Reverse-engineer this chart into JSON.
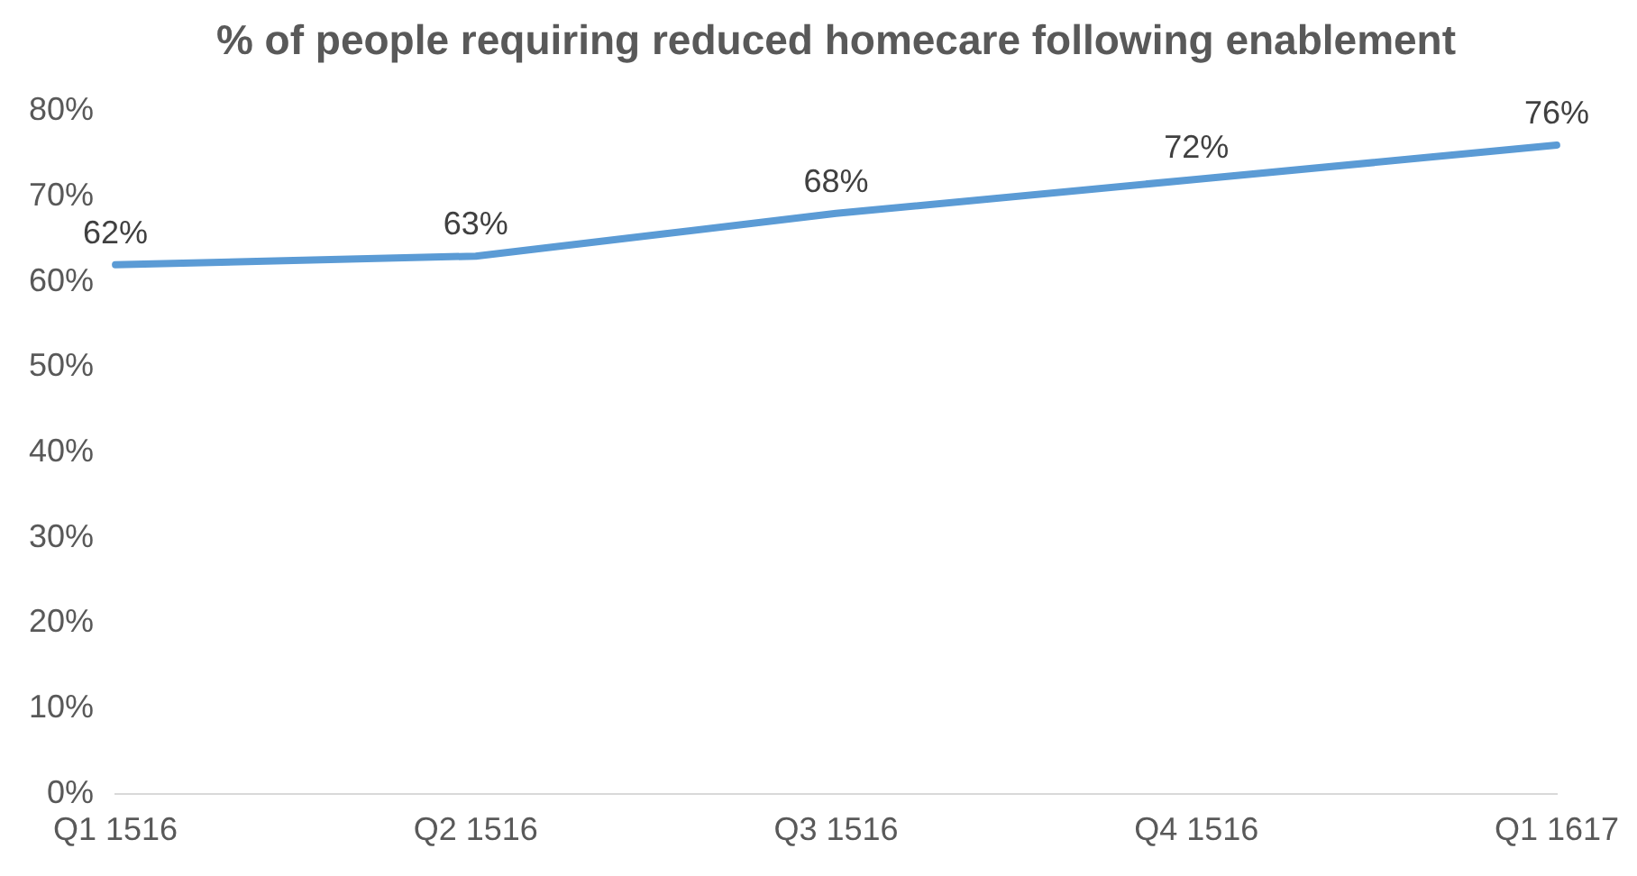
{
  "chart_data": {
    "type": "line",
    "title": "% of people requiring reduced homecare following enablement",
    "categories": [
      "Q1 1516",
      "Q2 1516",
      "Q3 1516",
      "Q4 1516",
      "Q1 1617"
    ],
    "series": [
      {
        "color": "#5b9bd5",
        "values": [
          62,
          63,
          68,
          72,
          76
        ],
        "value_labels": [
          "62%",
          "63%",
          "68%",
          "72%",
          "76%"
        ]
      }
    ],
    "ylim": [
      0,
      80
    ],
    "yticks": [
      {
        "value": 0,
        "label": "0%"
      },
      {
        "value": 10,
        "label": "10%"
      },
      {
        "value": 20,
        "label": "20%"
      },
      {
        "value": 30,
        "label": "30%"
      },
      {
        "value": 40,
        "label": "40%"
      },
      {
        "value": 50,
        "label": "50%"
      },
      {
        "value": 60,
        "label": "60%"
      },
      {
        "value": 70,
        "label": "70%"
      },
      {
        "value": 80,
        "label": "80%"
      }
    ],
    "grid": false,
    "legend": false,
    "marker": "none",
    "line_style": "solid"
  }
}
